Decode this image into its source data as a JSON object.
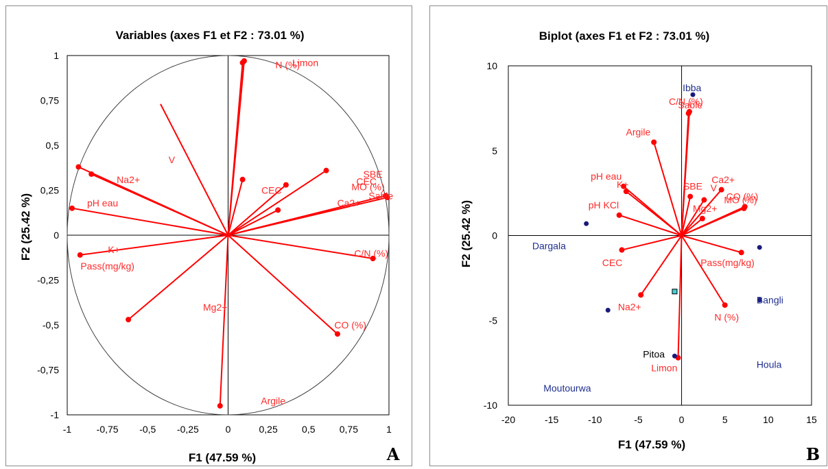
{
  "chart_data": [
    {
      "type": "scatter",
      "panel_letter": "A",
      "title": "Variables (axes F1 et F2 : 73.01 %)",
      "xlabel": "F1 (47.59 %)",
      "ylabel": "F2 (25.42 %)",
      "xlim": [
        -1,
        1
      ],
      "ylim": [
        -1,
        1
      ],
      "xticks": [
        "-1",
        "-0,75",
        "-0,5",
        "-0,25",
        "0",
        "0,25",
        "0,5",
        "0,75",
        "1"
      ],
      "yticks": [
        "1",
        "0,75",
        "0,5",
        "0,25",
        "0",
        "-0,25",
        "-0,5",
        "-0,75",
        "-1"
      ],
      "correlation_circle": true,
      "colors": {
        "vector": "#ff0000",
        "label": "#ff2a2a",
        "circle": "#404040",
        "axis": "#000000"
      },
      "vectors": [
        {
          "x": 0.1,
          "y": 0.97,
          "marker": true
        },
        {
          "x": 0.09,
          "y": 0.96,
          "marker": true
        },
        {
          "x": -0.42,
          "y": 0.73,
          "marker": false
        },
        {
          "x": -0.93,
          "y": 0.38,
          "marker": true
        },
        {
          "x": -0.85,
          "y": 0.34,
          "marker": true
        },
        {
          "x": -0.97,
          "y": 0.15,
          "marker": true
        },
        {
          "x": -0.92,
          "y": -0.11,
          "marker": true
        },
        {
          "x": -0.62,
          "y": -0.47,
          "marker": true
        },
        {
          "x": 0.09,
          "y": 0.31,
          "marker": true
        },
        {
          "x": 0.36,
          "y": 0.28,
          "marker": true
        },
        {
          "x": 0.31,
          "y": 0.14,
          "marker": true
        },
        {
          "x": 0.61,
          "y": 0.36,
          "marker": true
        },
        {
          "x": 0.98,
          "y": 0.22,
          "marker": true
        },
        {
          "x": 0.99,
          "y": 0.21,
          "marker": true
        },
        {
          "x": 0.9,
          "y": -0.13,
          "marker": true
        },
        {
          "x": 0.68,
          "y": -0.55,
          "marker": true
        },
        {
          "x": -0.05,
          "y": -0.95,
          "marker": true
        }
      ],
      "labels": [
        {
          "text": "Limon",
          "x": 0.48,
          "y": 0.94
        },
        {
          "text": "N (%)",
          "x": 0.37,
          "y": 0.93
        },
        {
          "text": "V",
          "x": -0.35,
          "y": 0.4
        },
        {
          "text": "Na2+",
          "x": -0.62,
          "y": 0.29
        },
        {
          "text": "pH eau",
          "x": -0.78,
          "y": 0.16
        },
        {
          "text": "K+",
          "x": -0.71,
          "y": -0.1
        },
        {
          "text": "Pass(mg/kg)",
          "x": -0.75,
          "y": -0.19
        },
        {
          "text": "CEC",
          "x": 0.27,
          "y": 0.23
        },
        {
          "text": "SBE",
          "x": 0.9,
          "y": 0.32
        },
        {
          "text": "CEC",
          "x": 0.86,
          "y": 0.28
        },
        {
          "text": "MO (%)",
          "x": 0.87,
          "y": 0.25
        },
        {
          "text": "Sable",
          "x": 0.95,
          "y": 0.2
        },
        {
          "text": "Ca2+",
          "x": 0.75,
          "y": 0.16
        },
        {
          "text": "C/N (%)",
          "x": 0.89,
          "y": -0.12
        },
        {
          "text": "Mg2+",
          "x": -0.08,
          "y": -0.42
        },
        {
          "text": "CO (%)",
          "x": 0.76,
          "y": -0.52
        },
        {
          "text": "Argile",
          "x": 0.28,
          "y": -0.94
        }
      ]
    },
    {
      "type": "scatter",
      "panel_letter": "B",
      "title": "Biplot (axes F1 et F2 : 73.01 %)",
      "xlabel": "F1 (47.59 %)",
      "ylabel": "F2 (25.42 %)",
      "xlim": [
        -20,
        15
      ],
      "ylim": [
        -10,
        10
      ],
      "xticks": [
        "-20",
        "-15",
        "-10",
        "-5",
        "0",
        "5",
        "10",
        "15"
      ],
      "yticks": [
        "10",
        "5",
        "0",
        "-5",
        "-10"
      ],
      "colors": {
        "vector": "#ff0000",
        "label": "#ff2a2a",
        "observation": "#1a1a7a",
        "obs_label": "#1f2f8f",
        "centroid": "#40d0d0"
      },
      "vectors": [
        {
          "x": 0.9,
          "y": 7.3
        },
        {
          "x": 0.8,
          "y": 7.2
        },
        {
          "x": -3.2,
          "y": 5.5
        },
        {
          "x": -6.7,
          "y": 2.9
        },
        {
          "x": -6.4,
          "y": 2.6
        },
        {
          "x": -7.2,
          "y": 1.2
        },
        {
          "x": -6.9,
          "y": -0.85
        },
        {
          "x": 1.0,
          "y": 2.3
        },
        {
          "x": 4.6,
          "y": 2.7
        },
        {
          "x": 2.6,
          "y": 2.1
        },
        {
          "x": 2.4,
          "y": 1.0
        },
        {
          "x": 7.3,
          "y": 1.7
        },
        {
          "x": 7.2,
          "y": 1.6
        },
        {
          "x": 6.9,
          "y": -1.0
        },
        {
          "x": 5.0,
          "y": -4.1
        },
        {
          "x": -4.7,
          "y": -3.5
        },
        {
          "x": -0.4,
          "y": -7.2
        }
      ],
      "observations": [
        {
          "name": "Ibba",
          "x": 1.3,
          "y": 8.3
        },
        {
          "name": "Dargala",
          "x": -11.0,
          "y": 0.7
        },
        {
          "name": "Bangli",
          "x": 9.0,
          "y": -0.7
        },
        {
          "name": "Houla",
          "x": 9.0,
          "y": -3.8
        },
        {
          "name": "Moutourwa",
          "x": -8.5,
          "y": -4.4
        },
        {
          "name": "Pitoa",
          "x": -0.8,
          "y": -7.1
        }
      ],
      "centroid": {
        "x": -0.8,
        "y": -3.3
      },
      "labels": [
        {
          "text": "C/N (%)",
          "x": 0.5,
          "y": 7.7,
          "color": "red"
        },
        {
          "text": "Sable",
          "x": 1.0,
          "y": 7.5,
          "color": "red"
        },
        {
          "text": "Argile",
          "x": -5.0,
          "y": 5.9,
          "color": "red"
        },
        {
          "text": "pH eau",
          "x": -8.7,
          "y": 3.3,
          "color": "red"
        },
        {
          "text": "K+",
          "x": -6.8,
          "y": 2.8,
          "color": "red"
        },
        {
          "text": "pH KCl",
          "x": -9.0,
          "y": 1.6,
          "color": "red"
        },
        {
          "text": "CEC",
          "x": -8.0,
          "y": -1.8,
          "color": "red"
        },
        {
          "text": "SBE",
          "x": 1.3,
          "y": 2.7,
          "color": "red"
        },
        {
          "text": "V",
          "x": 3.7,
          "y": 2.6,
          "color": "red"
        },
        {
          "text": "Ca2+",
          "x": 4.8,
          "y": 3.1,
          "color": "red"
        },
        {
          "text": "Mg2+",
          "x": 2.7,
          "y": 1.4,
          "color": "red"
        },
        {
          "text": "CO (%)",
          "x": 7.0,
          "y": 2.1,
          "color": "red"
        },
        {
          "text": "MO (%)",
          "x": 6.8,
          "y": 1.9,
          "color": "red"
        },
        {
          "text": "Pass(mg/kg)",
          "x": 5.3,
          "y": -1.8,
          "color": "red"
        },
        {
          "text": "N (%)",
          "x": 5.2,
          "y": -5.0,
          "color": "red"
        },
        {
          "text": "Na2+",
          "x": -6.0,
          "y": -4.4,
          "color": "red"
        },
        {
          "text": "Limon",
          "x": -2.0,
          "y": -8.0,
          "color": "red"
        },
        {
          "text": "Ibba",
          "x": 1.2,
          "y": 8.5,
          "color": "blue"
        },
        {
          "text": "Dargala",
          "x": -15.3,
          "y": -0.8,
          "color": "blue"
        },
        {
          "text": "Bangli",
          "x": 10.2,
          "y": -4.0,
          "color": "blue"
        },
        {
          "text": "Houla",
          "x": 10.1,
          "y": -7.8,
          "color": "blue"
        },
        {
          "text": "Moutourwa",
          "x": -13.2,
          "y": -9.2,
          "color": "blue"
        },
        {
          "text": "Pitoa",
          "x": -3.2,
          "y": -7.2,
          "color": "black"
        }
      ]
    }
  ]
}
